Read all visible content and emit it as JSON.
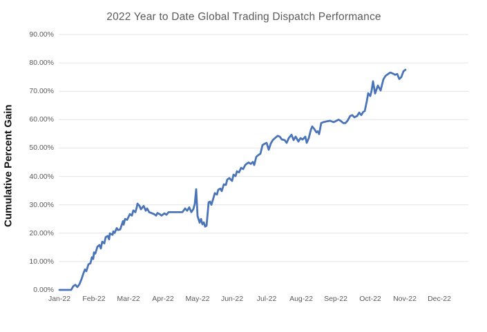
{
  "page": {
    "background": "#ffffff"
  },
  "chart_data": {
    "type": "line",
    "title": "2022 Year to Date Global Trading Dispatch Performance",
    "ylabel": "Cumulative Percent Gain",
    "xlabel": "",
    "categories": [
      "Jan-22",
      "Feb-22",
      "Mar-22",
      "Apr-22",
      "May-22",
      "Jun-22",
      "Jul-22",
      "Aug-22",
      "Sep-22",
      "Oct-22",
      "Nov-22",
      "Dec-22"
    ],
    "ytick_labels": [
      "90.00%",
      "80.00%",
      "70.00%",
      "60.00%",
      "50.00%",
      "40.00%",
      "30.00%",
      "20.00%",
      "10.00%",
      "0.00%"
    ],
    "ylim": [
      0,
      90
    ],
    "xlim_months": [
      0,
      11.8
    ],
    "grid": true,
    "legend": false,
    "line_color": "#4A74B8",
    "gridline_color": "#E4E4E4",
    "text_color": "#595959",
    "series": [
      {
        "name": "Cumulative Percent Gain",
        "points_format": "[month_index (0=Jan-22 .. 11=Dec-22), cumulative_percent_gain]",
        "points": [
          [
            0.0,
            0.0
          ],
          [
            0.34,
            0.0
          ],
          [
            0.4,
            1.3
          ],
          [
            0.46,
            1.8
          ],
          [
            0.52,
            1.0
          ],
          [
            0.58,
            2.0
          ],
          [
            0.64,
            3.8
          ],
          [
            0.7,
            6.0
          ],
          [
            0.74,
            7.2
          ],
          [
            0.78,
            6.6
          ],
          [
            0.84,
            9.0
          ],
          [
            0.9,
            9.4
          ],
          [
            0.94,
            11.5
          ],
          [
            0.98,
            10.9
          ],
          [
            1.0,
            13.2
          ],
          [
            1.04,
            12.8
          ],
          [
            1.1,
            15.2
          ],
          [
            1.16,
            15.8
          ],
          [
            1.2,
            14.6
          ],
          [
            1.24,
            17.0
          ],
          [
            1.3,
            16.4
          ],
          [
            1.34,
            18.6
          ],
          [
            1.4,
            19.0
          ],
          [
            1.44,
            17.8
          ],
          [
            1.46,
            19.9
          ],
          [
            1.54,
            19.4
          ],
          [
            1.56,
            20.6
          ],
          [
            1.6,
            20.1
          ],
          [
            1.66,
            21.8
          ],
          [
            1.7,
            21.1
          ],
          [
            1.76,
            21.3
          ],
          [
            1.84,
            24.2
          ],
          [
            1.86,
            23.0
          ],
          [
            1.9,
            25.0
          ],
          [
            1.96,
            24.7
          ],
          [
            2.04,
            26.7
          ],
          [
            2.1,
            26.2
          ],
          [
            2.14,
            28.0
          ],
          [
            2.2,
            27.4
          ],
          [
            2.24,
            29.1
          ],
          [
            2.26,
            30.4
          ],
          [
            2.32,
            29.6
          ],
          [
            2.36,
            28.4
          ],
          [
            2.44,
            29.6
          ],
          [
            2.5,
            27.9
          ],
          [
            2.54,
            28.7
          ],
          [
            2.6,
            27.4
          ],
          [
            2.66,
            27.1
          ],
          [
            2.74,
            26.7
          ],
          [
            2.8,
            26.2
          ],
          [
            2.84,
            27.1
          ],
          [
            2.9,
            26.7
          ],
          [
            2.96,
            26.2
          ],
          [
            3.04,
            27.0
          ],
          [
            3.1,
            26.5
          ],
          [
            3.16,
            27.4
          ],
          [
            3.32,
            27.4
          ],
          [
            3.48,
            27.4
          ],
          [
            3.56,
            27.4
          ],
          [
            3.64,
            28.7
          ],
          [
            3.7,
            27.9
          ],
          [
            3.76,
            29.1
          ],
          [
            3.82,
            27.4
          ],
          [
            3.88,
            28.5
          ],
          [
            3.92,
            30.3
          ],
          [
            3.96,
            35.5
          ],
          [
            4.0,
            26.0
          ],
          [
            4.06,
            23.7
          ],
          [
            4.1,
            25.0
          ],
          [
            4.14,
            23.1
          ],
          [
            4.18,
            23.8
          ],
          [
            4.22,
            22.3
          ],
          [
            4.26,
            22.6
          ],
          [
            4.3,
            28.0
          ],
          [
            4.32,
            30.9
          ],
          [
            4.36,
            31.1
          ],
          [
            4.4,
            30.0
          ],
          [
            4.46,
            32.4
          ],
          [
            4.5,
            34.1
          ],
          [
            4.56,
            33.6
          ],
          [
            4.6,
            35.3
          ],
          [
            4.66,
            35.7
          ],
          [
            4.7,
            34.8
          ],
          [
            4.76,
            37.2
          ],
          [
            4.82,
            37.0
          ],
          [
            4.86,
            38.9
          ],
          [
            4.92,
            39.4
          ],
          [
            5.0,
            38.4
          ],
          [
            5.04,
            40.6
          ],
          [
            5.1,
            40.1
          ],
          [
            5.14,
            41.8
          ],
          [
            5.2,
            41.4
          ],
          [
            5.26,
            43.0
          ],
          [
            5.32,
            42.6
          ],
          [
            5.38,
            44.0
          ],
          [
            5.44,
            44.6
          ],
          [
            5.48,
            44.9
          ],
          [
            5.54,
            44.4
          ],
          [
            5.6,
            45.1
          ],
          [
            5.64,
            44.0
          ],
          [
            5.7,
            46.9
          ],
          [
            5.76,
            47.5
          ],
          [
            5.82,
            48.0
          ],
          [
            5.88,
            51.0
          ],
          [
            5.94,
            51.5
          ],
          [
            6.0,
            51.8
          ],
          [
            6.06,
            49.4
          ],
          [
            6.12,
            51.6
          ],
          [
            6.18,
            52.8
          ],
          [
            6.24,
            53.5
          ],
          [
            6.32,
            54.3
          ],
          [
            6.38,
            54.0
          ],
          [
            6.44,
            53.0
          ],
          [
            6.52,
            52.8
          ],
          [
            6.58,
            51.8
          ],
          [
            6.64,
            53.5
          ],
          [
            6.72,
            54.7
          ],
          [
            6.78,
            52.8
          ],
          [
            6.84,
            54.0
          ],
          [
            6.92,
            52.3
          ],
          [
            6.98,
            53.5
          ],
          [
            7.04,
            53.0
          ],
          [
            7.12,
            54.0
          ],
          [
            7.16,
            51.8
          ],
          [
            7.22,
            53.5
          ],
          [
            7.28,
            56.4
          ],
          [
            7.32,
            57.6
          ],
          [
            7.38,
            56.7
          ],
          [
            7.44,
            55.5
          ],
          [
            7.48,
            55.9
          ],
          [
            7.52,
            54.9
          ],
          [
            7.58,
            58.8
          ],
          [
            7.64,
            59.1
          ],
          [
            7.74,
            59.4
          ],
          [
            7.84,
            59.6
          ],
          [
            7.94,
            59.1
          ],
          [
            8.02,
            59.6
          ],
          [
            8.08,
            60.0
          ],
          [
            8.14,
            59.6
          ],
          [
            8.22,
            58.8
          ],
          [
            8.28,
            58.8
          ],
          [
            8.34,
            59.6
          ],
          [
            8.42,
            61.3
          ],
          [
            8.48,
            61.6
          ],
          [
            8.54,
            60.8
          ],
          [
            8.62,
            61.3
          ],
          [
            8.68,
            62.5
          ],
          [
            8.74,
            61.6
          ],
          [
            8.8,
            62.8
          ],
          [
            8.84,
            63.0
          ],
          [
            8.9,
            66.5
          ],
          [
            8.94,
            69.3
          ],
          [
            9.0,
            68.3
          ],
          [
            9.04,
            70.3
          ],
          [
            9.08,
            73.5
          ],
          [
            9.14,
            69.2
          ],
          [
            9.22,
            72.0
          ],
          [
            9.3,
            70.3
          ],
          [
            9.38,
            74.2
          ],
          [
            9.44,
            75.4
          ],
          [
            9.52,
            76.1
          ],
          [
            9.58,
            76.6
          ],
          [
            9.66,
            76.2
          ],
          [
            9.72,
            75.8
          ],
          [
            9.78,
            76.1
          ],
          [
            9.84,
            74.3
          ],
          [
            9.9,
            75.0
          ],
          [
            9.96,
            77.0
          ],
          [
            10.02,
            77.6
          ]
        ]
      }
    ]
  }
}
